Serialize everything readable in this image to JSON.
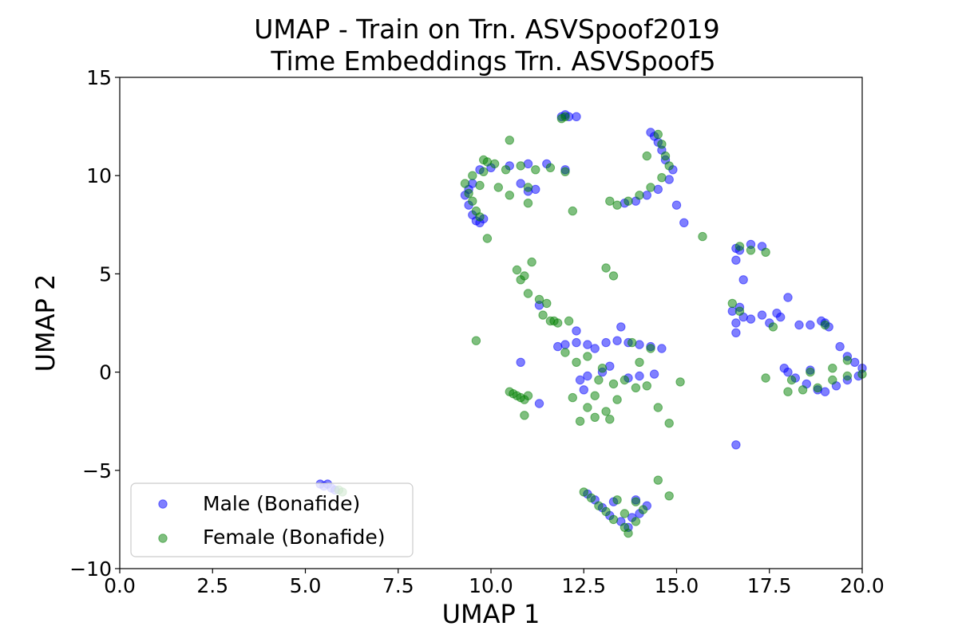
{
  "chart_data": {
    "type": "scatter",
    "title_lines": [
      "UMAP - Train on Trn. ASVSpoof2019",
      "Time Embeddings Trn. ASVSpoof5"
    ],
    "xlabel": "UMAP 1",
    "ylabel": "UMAP 2",
    "xlim": [
      0.0,
      20.0
    ],
    "ylim": [
      -10,
      15
    ],
    "xticks": [
      "0.0",
      "2.5",
      "5.0",
      "7.5",
      "10.0",
      "12.5",
      "15.0",
      "17.5",
      "20.0"
    ],
    "xtick_values": [
      0.0,
      2.5,
      5.0,
      7.5,
      10.0,
      12.5,
      15.0,
      17.5,
      20.0
    ],
    "yticks": [
      "−10",
      "−5",
      "0",
      "5",
      "10",
      "15"
    ],
    "ytick_values": [
      -10,
      -5,
      0,
      5,
      10,
      15
    ],
    "grid": false,
    "legend_position": "lower-left",
    "series": [
      {
        "name": "Male (Bonafide)",
        "color": "#0000ff",
        "points": [
          [
            5.4,
            -5.7
          ],
          [
            5.5,
            -5.8
          ],
          [
            5.6,
            -5.7
          ],
          [
            5.7,
            -5.9
          ],
          [
            5.8,
            -6.0
          ],
          [
            9.3,
            9.0
          ],
          [
            9.4,
            8.5
          ],
          [
            9.5,
            8.0
          ],
          [
            9.6,
            7.7
          ],
          [
            9.7,
            7.6
          ],
          [
            9.8,
            7.8
          ],
          [
            9.5,
            9.6
          ],
          [
            9.7,
            10.3
          ],
          [
            10.0,
            10.4
          ],
          [
            10.5,
            10.5
          ],
          [
            11.0,
            10.6
          ],
          [
            11.5,
            10.6
          ],
          [
            12.0,
            10.3
          ],
          [
            11.2,
            9.3
          ],
          [
            11.0,
            9.2
          ],
          [
            10.8,
            9.6
          ],
          [
            9.4,
            9.3
          ],
          [
            11.9,
            13.0
          ],
          [
            12.0,
            13.1
          ],
          [
            12.1,
            13.0
          ],
          [
            12.3,
            13.0
          ],
          [
            14.3,
            12.2
          ],
          [
            14.4,
            12.0
          ],
          [
            14.5,
            11.7
          ],
          [
            14.6,
            11.3
          ],
          [
            14.7,
            10.8
          ],
          [
            14.9,
            10.3
          ],
          [
            14.8,
            9.8
          ],
          [
            14.5,
            9.3
          ],
          [
            14.2,
            9.0
          ],
          [
            13.9,
            8.7
          ],
          [
            13.6,
            8.6
          ],
          [
            15.0,
            8.5
          ],
          [
            15.2,
            7.6
          ],
          [
            16.6,
            6.3
          ],
          [
            16.7,
            6.2
          ],
          [
            17.0,
            6.5
          ],
          [
            17.3,
            6.4
          ],
          [
            16.6,
            5.7
          ],
          [
            16.8,
            4.7
          ],
          [
            16.5,
            3.1
          ],
          [
            16.7,
            3.3
          ],
          [
            16.8,
            2.8
          ],
          [
            16.6,
            2.5
          ],
          [
            17.0,
            2.7
          ],
          [
            17.3,
            2.9
          ],
          [
            17.5,
            2.5
          ],
          [
            17.8,
            2.8
          ],
          [
            18.0,
            3.8
          ],
          [
            18.3,
            2.4
          ],
          [
            18.6,
            2.4
          ],
          [
            16.6,
            2.0
          ],
          [
            17.7,
            3.0
          ],
          [
            18.9,
            2.6
          ],
          [
            19.0,
            2.5
          ],
          [
            19.1,
            2.3
          ],
          [
            17.9,
            0.2
          ],
          [
            18.0,
            0.0
          ],
          [
            18.2,
            -0.3
          ],
          [
            18.5,
            -0.6
          ],
          [
            18.8,
            -0.9
          ],
          [
            19.0,
            -1.0
          ],
          [
            19.3,
            -0.7
          ],
          [
            19.6,
            -0.4
          ],
          [
            19.9,
            -0.2
          ],
          [
            20.0,
            0.2
          ],
          [
            19.4,
            1.3
          ],
          [
            19.6,
            0.8
          ],
          [
            19.8,
            0.5
          ],
          [
            18.6,
            0.1
          ],
          [
            11.8,
            1.3
          ],
          [
            12.0,
            1.4
          ],
          [
            12.3,
            1.5
          ],
          [
            12.6,
            1.4
          ],
          [
            12.8,
            1.2
          ],
          [
            13.1,
            1.5
          ],
          [
            13.4,
            1.6
          ],
          [
            13.7,
            1.5
          ],
          [
            14.0,
            1.4
          ],
          [
            14.3,
            1.3
          ],
          [
            14.6,
            1.2
          ],
          [
            12.4,
            -0.4
          ],
          [
            12.6,
            -0.2
          ],
          [
            13.0,
            0.0
          ],
          [
            13.2,
            0.3
          ],
          [
            13.7,
            -0.3
          ],
          [
            14.0,
            -0.2
          ],
          [
            14.4,
            -0.1
          ],
          [
            12.5,
            -0.9
          ],
          [
            12.3,
            2.1
          ],
          [
            13.5,
            2.3
          ],
          [
            10.8,
            0.5
          ],
          [
            11.3,
            -1.6
          ],
          [
            11.3,
            3.4
          ],
          [
            16.6,
            -3.7
          ],
          [
            12.6,
            -6.2
          ],
          [
            12.8,
            -6.5
          ],
          [
            13.0,
            -6.9
          ],
          [
            13.2,
            -7.3
          ],
          [
            13.5,
            -7.6
          ],
          [
            13.7,
            -7.9
          ],
          [
            13.8,
            -7.4
          ],
          [
            14.0,
            -7.2
          ],
          [
            14.2,
            -6.8
          ],
          [
            13.9,
            -6.5
          ],
          [
            13.3,
            -6.6
          ]
        ]
      },
      {
        "name": "Female (Bonafide)",
        "color": "#008000",
        "points": [
          [
            5.9,
            -6.0
          ],
          [
            6.0,
            -6.1
          ],
          [
            9.3,
            9.6
          ],
          [
            9.4,
            9.1
          ],
          [
            9.5,
            8.7
          ],
          [
            9.6,
            8.2
          ],
          [
            9.7,
            7.9
          ],
          [
            9.8,
            10.2
          ],
          [
            9.9,
            10.7
          ],
          [
            10.1,
            10.6
          ],
          [
            10.4,
            10.3
          ],
          [
            10.8,
            10.5
          ],
          [
            11.2,
            10.3
          ],
          [
            11.6,
            10.4
          ],
          [
            12.0,
            10.2
          ],
          [
            9.5,
            10.0
          ],
          [
            9.7,
            9.5
          ],
          [
            10.2,
            9.4
          ],
          [
            11.0,
            9.4
          ],
          [
            11.0,
            8.6
          ],
          [
            10.5,
            9.0
          ],
          [
            9.9,
            6.8
          ],
          [
            10.5,
            11.8
          ],
          [
            12.2,
            8.2
          ],
          [
            9.8,
            10.8
          ],
          [
            11.9,
            12.9
          ],
          [
            12.0,
            13.0
          ],
          [
            14.5,
            12.1
          ],
          [
            14.6,
            11.6
          ],
          [
            14.7,
            11.0
          ],
          [
            14.8,
            10.5
          ],
          [
            14.6,
            9.9
          ],
          [
            14.3,
            9.4
          ],
          [
            14.0,
            9.0
          ],
          [
            13.7,
            8.7
          ],
          [
            13.4,
            8.5
          ],
          [
            14.2,
            11.0
          ],
          [
            13.2,
            8.7
          ],
          [
            15.7,
            6.9
          ],
          [
            16.7,
            6.4
          ],
          [
            17.0,
            6.2
          ],
          [
            17.4,
            6.1
          ],
          [
            16.5,
            3.5
          ],
          [
            17.6,
            2.3
          ],
          [
            16.7,
            3.1
          ],
          [
            19.0,
            2.4
          ],
          [
            18.1,
            -0.4
          ],
          [
            18.4,
            -0.9
          ],
          [
            18.8,
            -0.8
          ],
          [
            19.2,
            -0.4
          ],
          [
            19.6,
            -0.2
          ],
          [
            20.0,
            -0.1
          ],
          [
            18.6,
            0.0
          ],
          [
            19.2,
            0.2
          ],
          [
            19.6,
            0.6
          ],
          [
            17.4,
            -0.3
          ],
          [
            18.0,
            -1.0
          ],
          [
            10.7,
            5.2
          ],
          [
            10.8,
            4.7
          ],
          [
            10.9,
            4.9
          ],
          [
            11.0,
            4.0
          ],
          [
            11.3,
            3.7
          ],
          [
            11.1,
            5.6
          ],
          [
            11.5,
            3.5
          ],
          [
            11.6,
            2.6
          ],
          [
            11.8,
            2.5
          ],
          [
            12.1,
            2.6
          ],
          [
            9.6,
            1.6
          ],
          [
            13.1,
            5.3
          ],
          [
            13.3,
            4.9
          ],
          [
            11.4,
            2.9
          ],
          [
            11.7,
            2.6
          ],
          [
            12.0,
            1.0
          ],
          [
            12.3,
            0.5
          ],
          [
            12.6,
            0.8
          ],
          [
            13.0,
            0.2
          ],
          [
            13.3,
            -0.6
          ],
          [
            12.8,
            -1.2
          ],
          [
            12.6,
            -1.8
          ],
          [
            12.8,
            -2.3
          ],
          [
            13.1,
            -2.0
          ],
          [
            13.4,
            -1.4
          ],
          [
            12.9,
            -0.4
          ],
          [
            13.6,
            -0.4
          ],
          [
            13.9,
            -0.8
          ],
          [
            14.2,
            -0.7
          ],
          [
            13.8,
            1.5
          ],
          [
            14.3,
            1.2
          ],
          [
            14.0,
            0.5
          ],
          [
            12.4,
            -2.5
          ],
          [
            12.2,
            -1.3
          ],
          [
            13.2,
            -2.4
          ],
          [
            14.5,
            -1.8
          ],
          [
            14.8,
            -2.6
          ],
          [
            15.1,
            -0.5
          ],
          [
            14.5,
            -5.5
          ],
          [
            14.8,
            -6.3
          ],
          [
            10.5,
            -1.0
          ],
          [
            10.6,
            -1.1
          ],
          [
            10.7,
            -1.2
          ],
          [
            10.8,
            -1.3
          ],
          [
            10.9,
            -1.4
          ],
          [
            10.9,
            -2.2
          ],
          [
            11.0,
            -1.2
          ],
          [
            12.5,
            -6.1
          ],
          [
            12.7,
            -6.4
          ],
          [
            12.9,
            -6.8
          ],
          [
            13.1,
            -7.1
          ],
          [
            13.3,
            -7.5
          ],
          [
            13.6,
            -7.9
          ],
          [
            13.7,
            -8.2
          ],
          [
            13.9,
            -7.6
          ],
          [
            14.1,
            -7.0
          ],
          [
            13.9,
            -6.6
          ],
          [
            13.4,
            -6.5
          ],
          [
            13.6,
            -7.2
          ]
        ]
      }
    ]
  }
}
